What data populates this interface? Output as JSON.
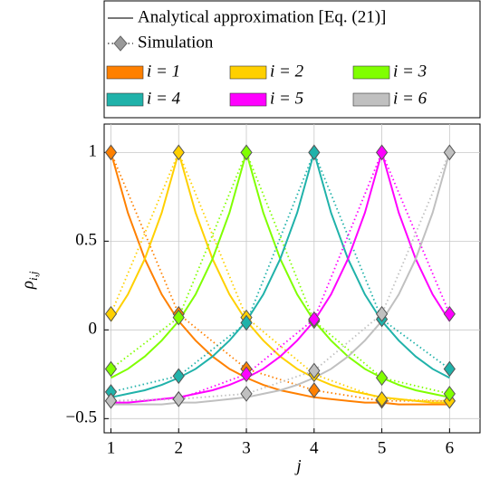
{
  "chart_data": {
    "type": "line",
    "legend_analytic": "Analytical approximation [Eq. (21)]",
    "legend_simulation": "Simulation",
    "x_label": "j",
    "y_label": "ρ",
    "y_label_sub": "i,j",
    "xlim": [
      0.9,
      6.45
    ],
    "ylim": [
      -0.58,
      1.16
    ],
    "xticks": [
      1,
      2,
      3,
      4,
      5,
      6
    ],
    "yticks": [
      {
        "value": -0.5,
        "label": "−0.5"
      },
      0,
      0.5,
      1
    ],
    "grid": true,
    "x": [
      1,
      2,
      3,
      4,
      5,
      6
    ],
    "analytic_x": [
      1,
      1.25,
      1.5,
      1.75,
      2,
      2.25,
      2.5,
      2.75,
      3,
      3.25,
      3.5,
      3.75,
      4,
      4.25,
      4.5,
      4.75,
      5,
      5.25,
      5.5,
      5.75,
      6
    ],
    "series": [
      {
        "name": "i = 1",
        "color": "#ff8000",
        "values": [
          1,
          0.09,
          -0.22,
          -0.34,
          -0.4,
          -0.4
        ],
        "analytic_values": [
          1.0,
          0.66,
          0.4,
          0.2,
          0.05,
          -0.06,
          -0.15,
          -0.22,
          -0.27,
          -0.31,
          -0.34,
          -0.36,
          -0.38,
          -0.39,
          -0.4,
          -0.41,
          -0.41,
          -0.42,
          -0.42,
          -0.42,
          -0.42
        ]
      },
      {
        "name": "i = 2",
        "color": "#ffd000",
        "values": [
          0.09,
          1,
          0.07,
          -0.25,
          -0.39,
          -0.4
        ],
        "analytic_values": [
          0.05,
          0.2,
          0.4,
          0.66,
          1.0,
          0.66,
          0.4,
          0.2,
          0.05,
          -0.06,
          -0.15,
          -0.22,
          -0.27,
          -0.31,
          -0.34,
          -0.36,
          -0.38,
          -0.39,
          -0.4,
          -0.41,
          -0.41
        ]
      },
      {
        "name": "i = 3",
        "color": "#80ff00",
        "values": [
          -0.22,
          0.07,
          1,
          0.05,
          -0.27,
          -0.36
        ],
        "analytic_values": [
          -0.27,
          -0.22,
          -0.15,
          -0.06,
          0.05,
          0.2,
          0.4,
          0.66,
          1.0,
          0.66,
          0.4,
          0.2,
          0.05,
          -0.06,
          -0.15,
          -0.22,
          -0.27,
          -0.31,
          -0.34,
          -0.36,
          -0.38
        ]
      },
      {
        "name": "i = 4",
        "color": "#20b2aa",
        "values": [
          -0.35,
          -0.26,
          0.04,
          1,
          0.06,
          -0.22
        ],
        "analytic_values": [
          -0.38,
          -0.36,
          -0.34,
          -0.31,
          -0.27,
          -0.22,
          -0.15,
          -0.06,
          0.05,
          0.2,
          0.4,
          0.66,
          1.0,
          0.66,
          0.4,
          0.2,
          0.05,
          -0.06,
          -0.15,
          -0.22,
          -0.27
        ]
      },
      {
        "name": "i = 5",
        "color": "#ff00ff",
        "values": [
          -0.4,
          -0.39,
          -0.25,
          0.06,
          1,
          0.09
        ],
        "analytic_values": [
          -0.41,
          -0.41,
          -0.4,
          -0.39,
          -0.38,
          -0.36,
          -0.34,
          -0.31,
          -0.27,
          -0.22,
          -0.15,
          -0.06,
          0.05,
          0.2,
          0.4,
          0.66,
          1.0,
          0.66,
          0.4,
          0.2,
          0.05
        ]
      },
      {
        "name": "i = 6",
        "color": "#c0c0c0",
        "values": [
          -0.4,
          -0.39,
          -0.36,
          -0.23,
          0.09,
          1
        ],
        "analytic_values": [
          -0.42,
          -0.42,
          -0.42,
          -0.42,
          -0.41,
          -0.41,
          -0.4,
          -0.39,
          -0.38,
          -0.36,
          -0.34,
          -0.31,
          -0.27,
          -0.22,
          -0.15,
          -0.06,
          0.05,
          0.2,
          0.4,
          0.66,
          1.0
        ]
      }
    ]
  }
}
